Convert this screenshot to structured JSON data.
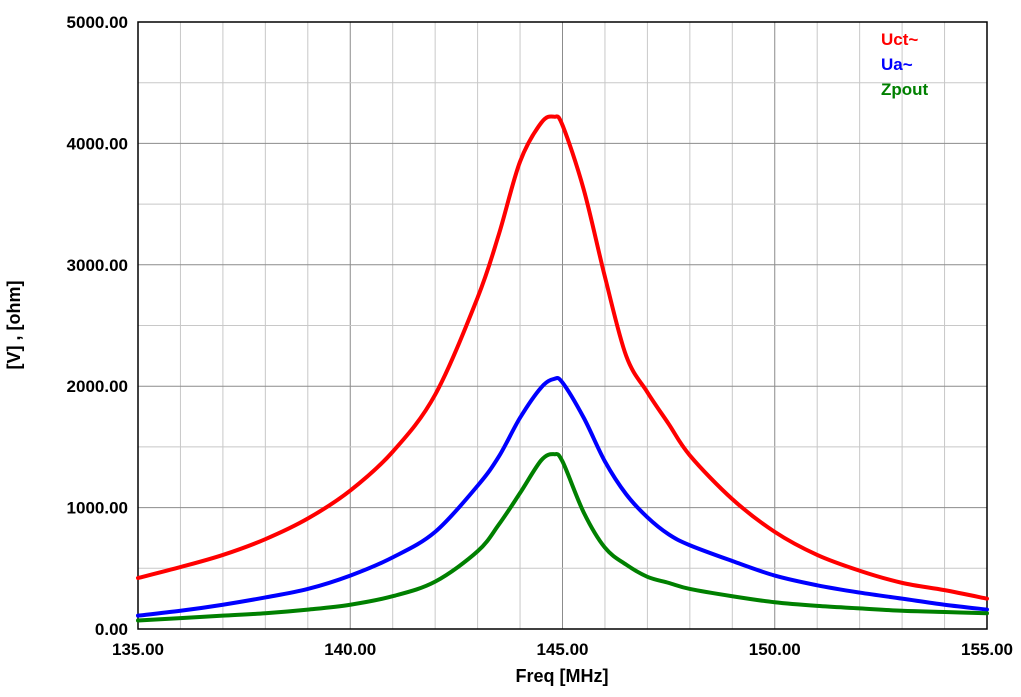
{
  "chart_data": {
    "type": "line",
    "xlabel": "Freq [MHz]",
    "ylabel": "[V] , [ohm]",
    "xlim": [
      135,
      155
    ],
    "ylim": [
      0,
      5000
    ],
    "x_ticks": [
      "135.00",
      "140.00",
      "145.00",
      "150.00",
      "155.00"
    ],
    "y_ticks": [
      "0.00",
      "1000.00",
      "2000.00",
      "3000.00",
      "4000.00",
      "5000.00"
    ],
    "grid": true,
    "legend_position": "top-right",
    "series": [
      {
        "name": "Uct~",
        "color": "#ff0000",
        "x": [
          135,
          136,
          137,
          138,
          139,
          140,
          141,
          142,
          143,
          143.5,
          144,
          144.5,
          144.8,
          145,
          145.5,
          146,
          146.5,
          147,
          147.5,
          148,
          149,
          150,
          151,
          152,
          153,
          154,
          155
        ],
        "y": [
          420,
          510,
          610,
          740,
          910,
          1140,
          1460,
          1930,
          2730,
          3250,
          3850,
          4170,
          4220,
          4150,
          3620,
          2900,
          2250,
          1950,
          1690,
          1430,
          1070,
          800,
          610,
          480,
          380,
          320,
          250
        ]
      },
      {
        "name": "Ua~",
        "color": "#0000ff",
        "x": [
          135,
          136,
          137,
          138,
          139,
          140,
          141,
          142,
          143,
          143.5,
          144,
          144.5,
          144.8,
          145,
          145.5,
          146,
          146.5,
          147,
          147.5,
          148,
          149,
          150,
          151,
          152,
          153,
          154,
          155
        ],
        "y": [
          110,
          150,
          200,
          260,
          330,
          440,
          590,
          800,
          1180,
          1420,
          1740,
          1990,
          2060,
          2030,
          1740,
          1380,
          1110,
          920,
          780,
          690,
          560,
          440,
          360,
          300,
          250,
          200,
          160
        ]
      },
      {
        "name": "Zpout",
        "color": "#008000",
        "x": [
          135,
          136,
          137,
          138,
          139,
          140,
          141,
          142,
          143,
          143.5,
          144,
          144.5,
          144.8,
          145,
          145.5,
          146,
          146.5,
          147,
          147.5,
          148,
          149,
          150,
          151,
          152,
          153,
          154,
          155
        ],
        "y": [
          70,
          90,
          110,
          130,
          160,
          200,
          270,
          390,
          640,
          860,
          1120,
          1390,
          1440,
          1380,
          960,
          670,
          530,
          430,
          380,
          330,
          270,
          220,
          190,
          170,
          150,
          140,
          130
        ]
      }
    ]
  }
}
